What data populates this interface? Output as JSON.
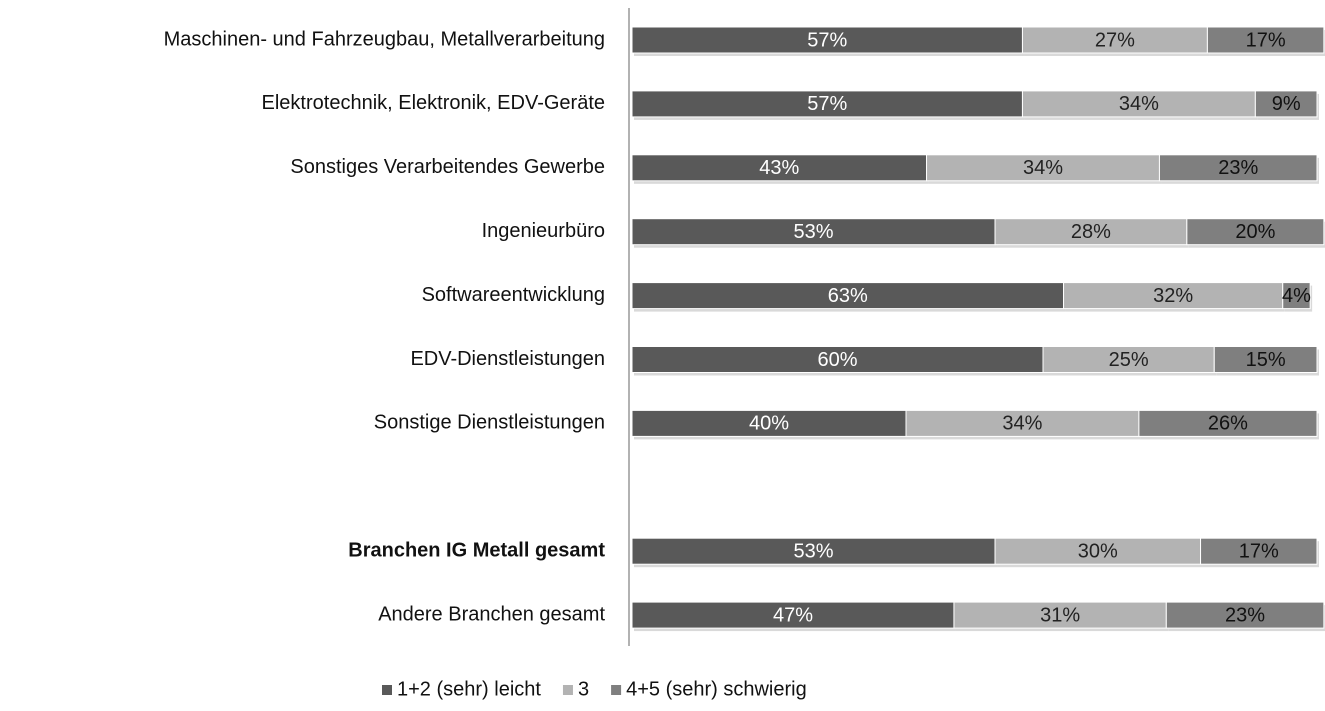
{
  "chart_data": {
    "type": "stacked_barh",
    "categories": [
      "Maschinen- und Fahrzeugbau, Metallverarbeitung",
      "Elektrotechnik, Elektronik, EDV-Geräte",
      "Sonstiges Verarbeitendes Gewerbe",
      "Ingenieurbüro",
      "Softwareentwicklung",
      "EDV-Dienstleistungen",
      "Sonstige Dienstleistungen",
      null,
      "Branchen IG Metall gesamt",
      "Andere Branchen gesamt"
    ],
    "series": [
      {
        "name": "1+2 (sehr) leicht",
        "color": "#595959",
        "values": [
          57,
          57,
          43,
          53,
          63,
          60,
          40,
          null,
          53,
          47
        ],
        "value_labels": [
          "57%",
          "57%",
          "43%",
          "53%",
          "63%",
          "60%",
          "40%",
          null,
          "53%",
          "47%"
        ]
      },
      {
        "name": "3",
        "color": "#b3b3b3",
        "values": [
          27,
          34,
          34,
          28,
          32,
          25,
          34,
          null,
          30,
          31
        ],
        "value_labels": [
          "27%",
          "34%",
          "34%",
          "28%",
          "32%",
          "25%",
          "34%",
          null,
          "30%",
          "31%"
        ]
      },
      {
        "name": "4+5 (sehr) schwierig",
        "color": "#7f7f7f",
        "values": [
          17,
          9,
          23,
          20,
          4,
          15,
          26,
          null,
          17,
          23
        ],
        "value_labels": [
          "17%",
          "9%",
          "23%",
          "20%",
          "4%",
          "15%",
          "26%",
          null,
          "17%",
          "23%"
        ]
      }
    ],
    "xlim": [
      0,
      100
    ],
    "legend": "bottom"
  }
}
